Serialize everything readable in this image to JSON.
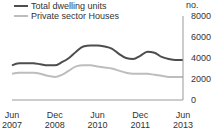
{
  "chart_data": {
    "type": "line",
    "y_label": "no.",
    "categories": [
      "Jun 2007",
      null,
      null,
      null,
      null,
      null,
      "Dec 2008",
      null,
      null,
      null,
      null,
      null,
      "Jun 2010",
      null,
      null,
      null,
      null,
      null,
      "Dec 2011",
      null,
      null,
      null,
      null,
      null,
      "Jun 2013"
    ],
    "series": [
      {
        "name": "Total dwelling units",
        "color": "#4d4d4d",
        "values": [
          3300,
          3500,
          3500,
          3500,
          3400,
          3300,
          3300,
          3600,
          4000,
          4600,
          5100,
          5200,
          5200,
          5100,
          4900,
          4400,
          4000,
          3900,
          4200,
          4600,
          4500,
          4100,
          3900,
          3800,
          3800
        ]
      },
      {
        "name": "Private sector Houses",
        "color": "#bdbdbd",
        "values": [
          2500,
          2600,
          2600,
          2600,
          2500,
          2300,
          2200,
          2400,
          2800,
          3200,
          3300,
          3300,
          3200,
          3100,
          3000,
          2800,
          2600,
          2500,
          2500,
          2500,
          2400,
          2300,
          2200,
          2200,
          2200
        ]
      }
    ],
    "ylim": [
      0,
      8000
    ],
    "yticks": [
      0,
      2000,
      4000,
      6000,
      8000
    ],
    "grid": false,
    "legend": "top-left"
  }
}
